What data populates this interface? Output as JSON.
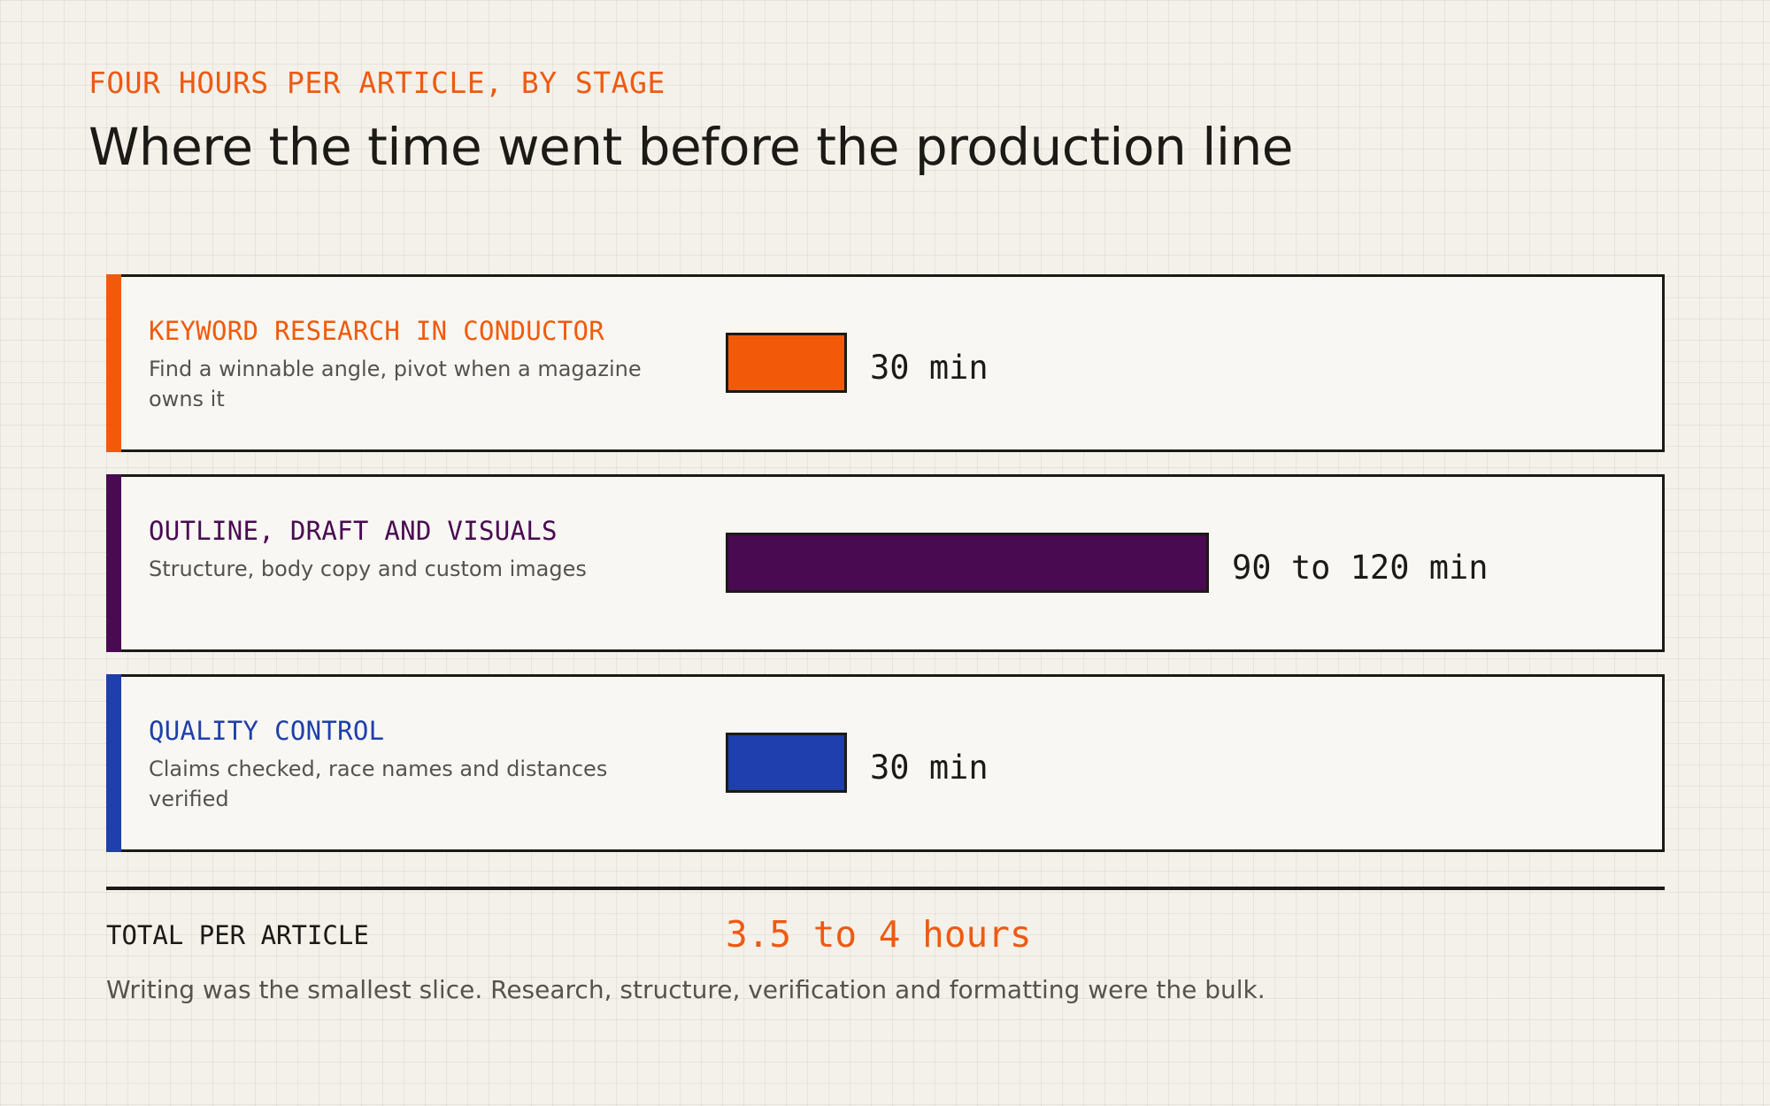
{
  "eyebrow": "FOUR HOURS PER ARTICLE, BY STAGE",
  "title": "Where the time went before the production line",
  "chart_data": {
    "type": "bar",
    "orientation": "horizontal",
    "unit": "min",
    "stages": [
      {
        "name": "KEYWORD RESEARCH IN CONDUCTOR",
        "description": "Find a winnable angle, pivot when a magazine owns it",
        "value_label": "30 min",
        "min": 30,
        "max": 30,
        "color": "#f25a0a"
      },
      {
        "name": "OUTLINE, DRAFT AND VISUALS",
        "description": "Structure, body copy and custom images",
        "value_label": "90 to 120 min",
        "min": 90,
        "max": 120,
        "color": "#4a0a52"
      },
      {
        "name": "QUALITY CONTROL",
        "description": "Claims checked, race names and distances verified",
        "value_label": "30 min",
        "min": 30,
        "max": 30,
        "color": "#1e3fad"
      }
    ]
  },
  "total": {
    "label": "TOTAL PER ARTICLE",
    "value": "3.5 to 4 hours"
  },
  "note": "Writing was the smallest slice. Research, structure, verification and formatting were the bulk.",
  "colors": {
    "accent": "#ee5a12",
    "text": "#1c1a17",
    "muted": "#56534e",
    "background": "#f4f1ea"
  }
}
